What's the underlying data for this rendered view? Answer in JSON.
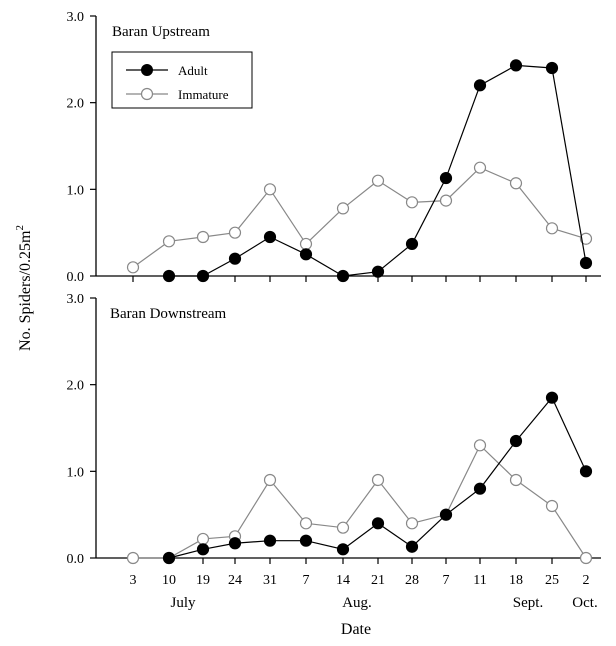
{
  "chart_data": [
    {
      "type": "line",
      "title": "Baran Upstream",
      "x_labels": [
        "3",
        "10",
        "19",
        "24",
        "31",
        "7",
        "14",
        "21",
        "28",
        "7",
        "11",
        "18",
        "25",
        "2"
      ],
      "ylim": [
        0,
        3
      ],
      "yticks": [
        "0.0",
        "1.0",
        "2.0",
        "3.0"
      ],
      "series": [
        {
          "name": "Adult",
          "marker": "filled-circle",
          "color": "#000000",
          "values": [
            null,
            0.0,
            0.0,
            0.2,
            0.45,
            0.25,
            0.0,
            0.05,
            0.37,
            1.13,
            2.2,
            2.43,
            2.4,
            0.15
          ]
        },
        {
          "name": "Immature",
          "marker": "open-circle",
          "color": "#888888",
          "values": [
            0.1,
            0.4,
            0.45,
            0.5,
            1.0,
            0.37,
            0.78,
            1.1,
            0.85,
            0.87,
            1.25,
            1.07,
            0.55,
            0.43
          ]
        }
      ],
      "legend": {
        "position": "top-left",
        "entries": [
          "Adult",
          "Immature"
        ]
      }
    },
    {
      "type": "line",
      "title": "Baran Downstream",
      "x_labels": [
        "3",
        "10",
        "19",
        "24",
        "31",
        "7",
        "14",
        "21",
        "28",
        "7",
        "11",
        "18",
        "25",
        "2"
      ],
      "ylim": [
        0,
        3
      ],
      "yticks": [
        "0.0",
        "1.0",
        "2.0",
        "3.0"
      ],
      "series": [
        {
          "name": "Adult",
          "marker": "filled-circle",
          "color": "#000000",
          "values": [
            null,
            0.0,
            0.1,
            0.17,
            0.2,
            0.2,
            0.1,
            0.4,
            0.13,
            0.5,
            0.8,
            1.35,
            1.85,
            1.0
          ]
        },
        {
          "name": "Immature",
          "marker": "open-circle",
          "color": "#888888",
          "values": [
            0.0,
            0.0,
            0.22,
            0.25,
            0.9,
            0.4,
            0.35,
            0.9,
            0.4,
            0.5,
            1.3,
            0.9,
            0.6,
            0.0
          ]
        }
      ]
    }
  ],
  "axes": {
    "ylabel_main": "No. Spiders/0.25m",
    "ylabel_sup": "2",
    "xlabel": "Date",
    "month_labels": [
      "July",
      "Aug.",
      "Sept.",
      "Oct."
    ]
  }
}
